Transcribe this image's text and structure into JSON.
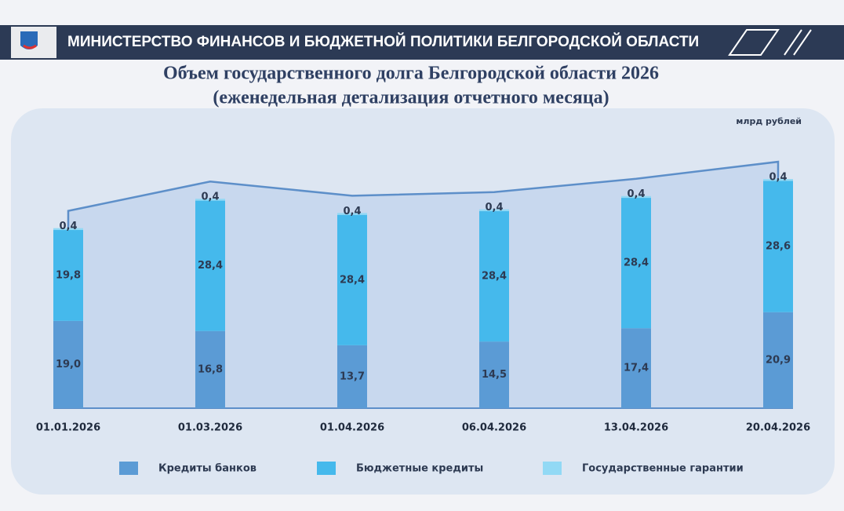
{
  "header": {
    "title": "МИНИСТЕРСТВО ФИНАНСОВ И БЮДЖЕТНОЙ ПОЛИТИКИ БЕЛГОРОДСКОЙ ОБЛАСТИ"
  },
  "chart_data": {
    "type": "stacked-bar",
    "title": "Объем государственного долга Белгородской области 2026",
    "subtitle": "(еженедельная детализация отчетного месяца)",
    "unit": "млрд рублей",
    "categories": [
      "01.01.2026",
      "01.03.2026",
      "01.04.2026",
      "06.04.2026",
      "13.04.2026",
      "20.04.2026"
    ],
    "series": [
      {
        "name": "Кредиты банков",
        "color": "#5b9bd5",
        "values": [
          19.0,
          16.8,
          13.7,
          14.5,
          17.4,
          20.9
        ],
        "value_labels": [
          "19,0",
          "16,8",
          "13,7",
          "14,5",
          "17,4",
          "20,9"
        ]
      },
      {
        "name": "Бюджетные кредиты",
        "color": "#45b9ec",
        "values": [
          19.8,
          28.4,
          28.4,
          28.4,
          28.4,
          28.6
        ],
        "value_labels": [
          "19,8",
          "28,4",
          "28,4",
          "28,4",
          "28,4",
          "28,6"
        ]
      },
      {
        "name": "Государственные гарантии",
        "color": "#92d9f5",
        "values": [
          0.4,
          0.4,
          0.4,
          0.4,
          0.4,
          0.4
        ],
        "value_labels": [
          "0,4",
          "0,4",
          "0,4",
          "0,4",
          "0,4",
          "0,4"
        ]
      }
    ]
  }
}
